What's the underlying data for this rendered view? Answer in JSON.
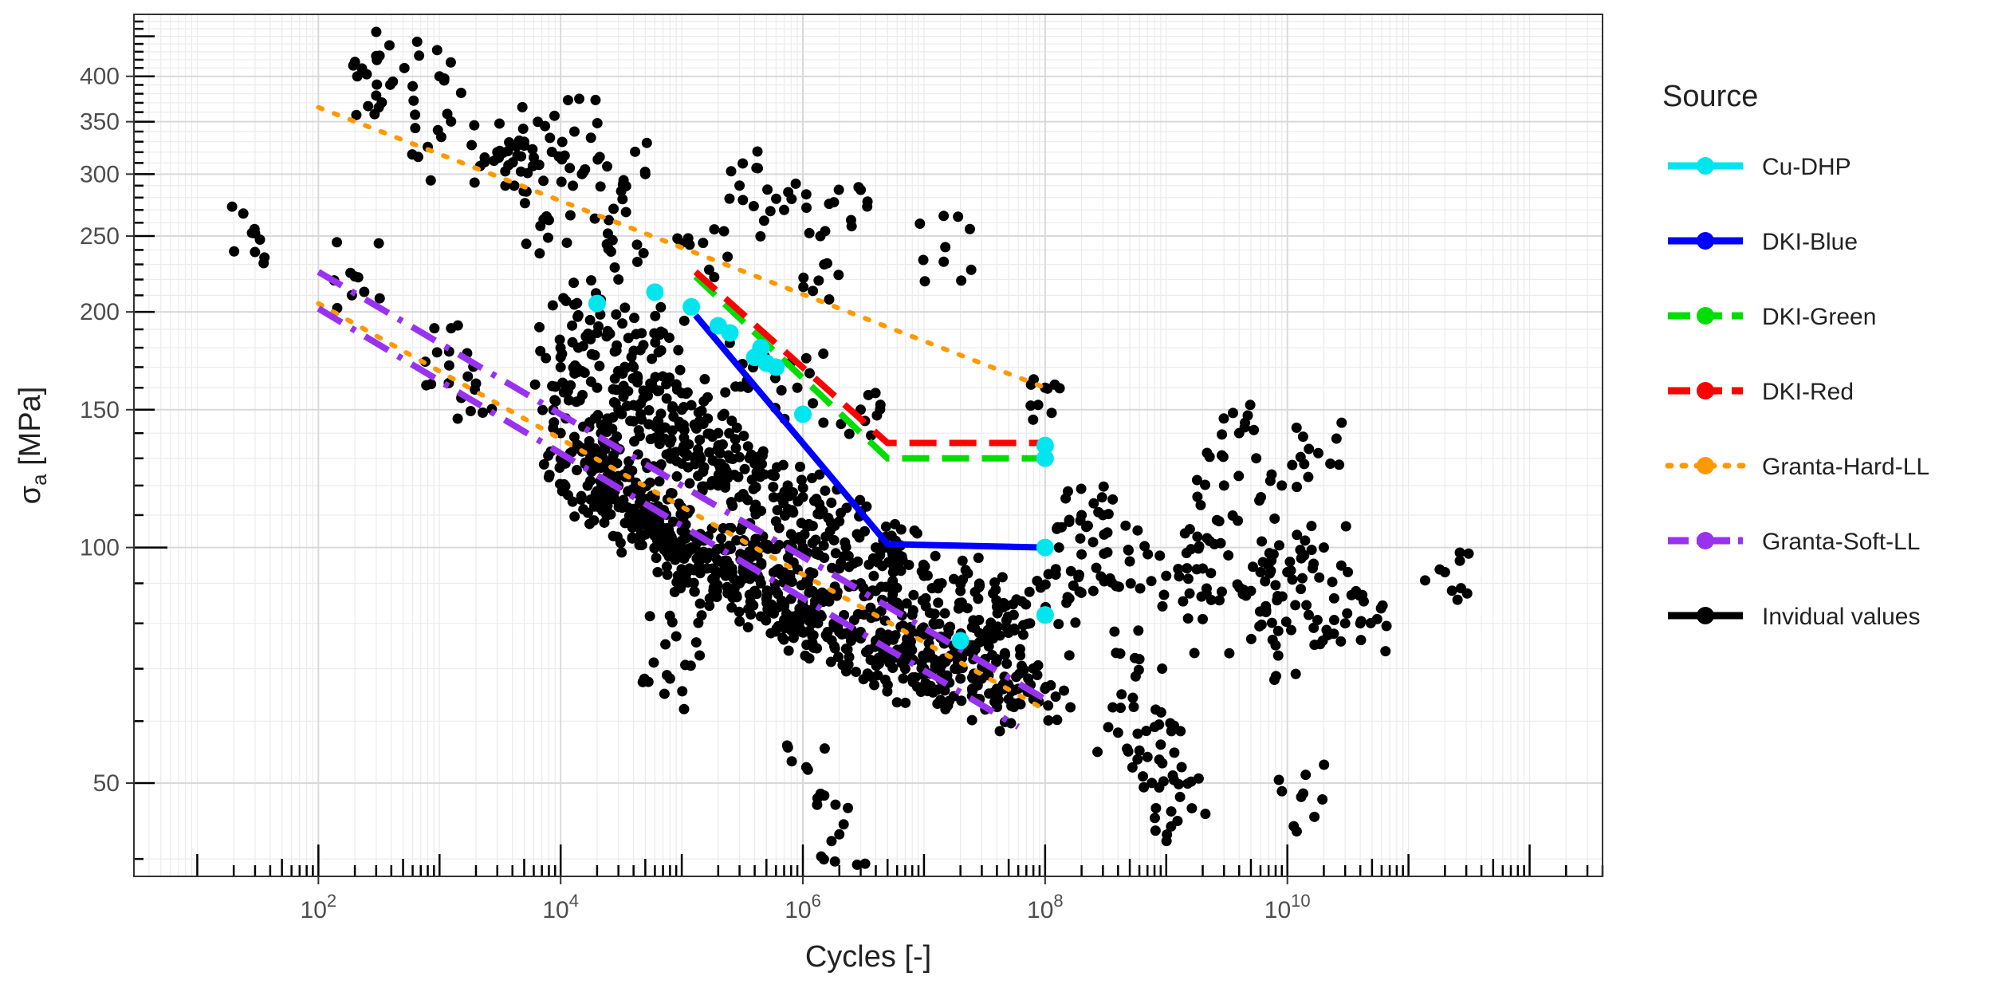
{
  "chart_data": {
    "type": "scatter",
    "xlabel": "Cycles [-]",
    "ylabel_main": "σ",
    "ylabel_sub": "a",
    "ylabel_unit": " [MPa]",
    "x_scale": "log10",
    "y_scale": "log10",
    "xlim": [
      3,
      4000000000000.0
    ],
    "ylim": [
      38,
      480
    ],
    "grid": true,
    "x_ticks": [
      {
        "value": 100,
        "base": "10",
        "exp": "2"
      },
      {
        "value": 10000,
        "base": "10",
        "exp": "4"
      },
      {
        "value": 1000000,
        "base": "10",
        "exp": "6"
      },
      {
        "value": 100000000,
        "base": "10",
        "exp": "8"
      },
      {
        "value": 10000000000,
        "base": "10",
        "exp": "10"
      }
    ],
    "y_ticks": [
      50,
      100,
      150,
      200,
      250,
      300,
      350,
      400
    ],
    "legend_position": "right",
    "legend": {
      "title": "Source",
      "entries": [
        {
          "name": "Cu-DHP",
          "color": "#00e5ee",
          "style": "solid"
        },
        {
          "name": "DKI-Blue",
          "color": "#0000ff",
          "style": "solid"
        },
        {
          "name": "DKI-Green",
          "color": "#00dd00",
          "style": "dashed"
        },
        {
          "name": "DKI-Red",
          "color": "#ff0000",
          "style": "dashed"
        },
        {
          "name": "Granta-Hard-LL",
          "color": "#ff9900",
          "style": "dotted"
        },
        {
          "name": "Granta-Soft-LL",
          "color": "#9932f0",
          "style": "dashdot"
        },
        {
          "name": "Invidual values",
          "color": "#000000",
          "style": "solid"
        }
      ]
    },
    "series": [
      {
        "name": "DKI-Blue",
        "color": "#0000ff",
        "style": "solid",
        "x": [
          130000,
          5000000,
          100000000
        ],
        "y": [
          198,
          101,
          100
        ]
      },
      {
        "name": "DKI-Green",
        "color": "#00dd00",
        "style": "dashed",
        "x": [
          130000,
          5000000,
          100000000
        ],
        "y": [
          222,
          130,
          130
        ]
      },
      {
        "name": "DKI-Red",
        "color": "#ff0000",
        "style": "dashed",
        "x": [
          130000,
          5000000,
          100000000
        ],
        "y": [
          225,
          136,
          136
        ]
      },
      {
        "name": "Granta-Hard-LL",
        "color": "#ff9900",
        "style": "dotted",
        "x": [
          100,
          100000000
        ],
        "y": [
          365,
          160
        ]
      },
      {
        "name": "Granta-Hard-LL",
        "color": "#ff9900",
        "style": "dotted",
        "x": [
          100,
          100000000
        ],
        "y": [
          205,
          62
        ]
      },
      {
        "name": "Granta-Soft-LL",
        "color": "#9932f0",
        "style": "dashdot",
        "x": [
          100,
          100000000
        ],
        "y": [
          225,
          64
        ]
      },
      {
        "name": "Granta-Soft-LL",
        "color": "#9932f0",
        "style": "dashdot",
        "x": [
          100,
          60000000
        ],
        "y": [
          202,
          59
        ]
      },
      {
        "name": "Cu-DHP",
        "color": "#00e5ee",
        "style": "points",
        "x": [
          20000,
          60000,
          120000,
          200000,
          250000,
          400000,
          450000,
          500000,
          600000,
          1000000,
          20000000,
          100000000,
          100000000,
          100000000,
          100000000
        ],
        "y": [
          205,
          212,
          203,
          192,
          188,
          175,
          180,
          172,
          170,
          148,
          76,
          135,
          130,
          100,
          82
        ]
      },
      {
        "name": "Invidual values",
        "color": "#000000",
        "style": "points",
        "x": [
          30,
          200,
          300,
          320,
          800,
          1000,
          1200,
          2000,
          3000,
          3500,
          5000,
          6000,
          8000,
          10000,
          13000,
          15000,
          20000,
          25000,
          30000,
          40000,
          50000,
          70000,
          80000,
          90000,
          100000,
          120000,
          150000,
          200000,
          300000,
          400000,
          500000,
          700000,
          900000,
          1100000,
          1500000,
          2000000,
          2500000,
          3000000,
          10000000,
          15000000,
          100000000,
          200000000,
          300000000,
          500000000,
          1000000000,
          2000000000,
          3000000000,
          5000000000,
          10000000000,
          13000000000,
          20000000000,
          40000000000,
          200000000000
        ],
        "y": [
          252,
          222,
          378,
          425,
          325,
          400,
          178,
          162,
          320,
          290,
          330,
          315,
          262,
          170,
          340,
          300,
          118,
          262,
          220,
          152,
          300,
          188,
          68,
          77,
          105,
          152,
          245,
          128,
          290,
          172,
          100,
          270,
          160,
          52,
          230,
          43,
          262,
          150,
          70,
          242,
          160,
          98,
          110,
          96,
          92,
          81,
          120,
          88,
          93,
          48,
          100,
          80,
          93
        ]
      },
      {
        "name": "Invidual values",
        "color": "#000000",
        "style": "points",
        "x": [
          10000,
          12000,
          14000,
          16000,
          18000,
          20000,
          22000,
          25000,
          28000,
          30000,
          33000,
          36000,
          40000,
          45000,
          50000,
          55000,
          60000,
          65000,
          70000,
          80000,
          90000,
          100000,
          110000,
          120000,
          140000,
          160000,
          180000,
          200000,
          230000,
          260000,
          300000,
          350000,
          400000,
          450000,
          500000,
          600000,
          700000,
          800000,
          900000,
          1000000,
          1200000,
          1400000,
          1600000,
          1800000,
          2000000,
          2500000,
          3000000,
          3500000,
          4000000,
          5000000,
          6000000,
          7000000,
          8000000,
          10000000,
          12000000,
          15000000,
          18000000,
          20000000,
          25000000,
          30000000,
          40000000,
          50000000,
          60000000,
          80000000,
          100000000
        ],
        "y": [
          140,
          132,
          135,
          128,
          125,
          130,
          122,
          125,
          118,
          120,
          115,
          118,
          112,
          114,
          108,
          110,
          106,
          108,
          102,
          104,
          100,
          102,
          98,
          100,
          96,
          98,
          94,
          96,
          92,
          94,
          90,
          92,
          88,
          90,
          86,
          88,
          84,
          86,
          82,
          84,
          80,
          82,
          78,
          80,
          78,
          76,
          78,
          74,
          76,
          72,
          74,
          70,
          72,
          70,
          72,
          68,
          70,
          68,
          66,
          68,
          66,
          64,
          66,
          64,
          66
        ]
      },
      {
        "name": "Invidual values",
        "color": "#000000",
        "style": "points",
        "x": [
          10000,
          15000,
          20000,
          30000,
          40000,
          60000,
          80000,
          100000,
          150000,
          200000,
          300000,
          400000,
          600000,
          800000,
          1000000,
          1500000,
          2000000,
          3000000,
          4000000,
          6000000,
          8000000,
          12000000,
          16000000,
          25000000,
          40000000
        ],
        "y": [
          175,
          168,
          160,
          150,
          145,
          138,
          132,
          128,
          125,
          120,
          116,
          112,
          108,
          104,
          100,
          97,
          94,
          90,
          88,
          85,
          82,
          80,
          78,
          75,
          72
        ]
      },
      {
        "name": "Invidual values",
        "color": "#000000",
        "style": "points",
        "x": [
          14000,
          20000,
          28000,
          40000,
          55000,
          75000,
          100000,
          140000,
          200000,
          280000,
          400000,
          550000,
          750000,
          1000000,
          1400000,
          2000000,
          2800000,
          4000000,
          5500000,
          7500000,
          10000000,
          14000000,
          20000000,
          28000000,
          40000000,
          55000000,
          75000000
        ],
        "y": [
          198,
          188,
          178,
          170,
          162,
          155,
          150,
          145,
          140,
          134,
          128,
          124,
          120,
          116,
          112,
          108,
          104,
          100,
          98,
          95,
          92,
          90,
          88,
          86,
          84,
          82,
          80
        ]
      },
      {
        "name": "Invidual values",
        "color": "#000000",
        "style": "points",
        "x": [
          150000000,
          200000000,
          250000000,
          400000000,
          600000000,
          700000000,
          900000000,
          1100000000,
          1300000000,
          2000000000,
          2500000000,
          4000000000,
          6000000000,
          8000000000,
          9000000000,
          11000000000,
          15000000000,
          18000000000,
          30000000000
        ],
        "y": [
          85,
          110,
          88,
          58,
          72,
          54,
          56,
          46,
          48,
          94,
          101,
          140,
          93,
          75,
          120,
          91,
          82,
          132,
          80
        ]
      }
    ]
  }
}
